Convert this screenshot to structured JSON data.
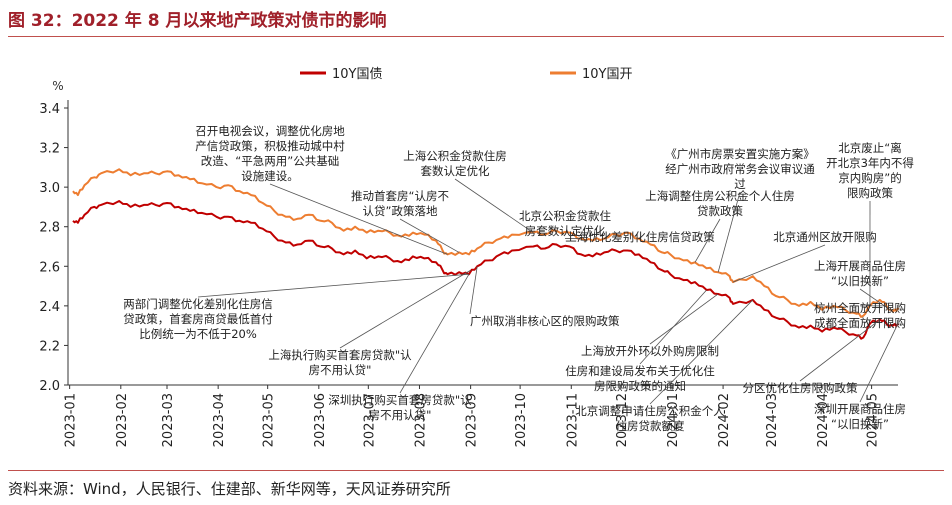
{
  "figure": {
    "title": "图 32：2022 年 8 月以来地产政策对债市的影响",
    "source": "资料来源：Wind，人民银行、住建部、新华网等，天风证券研究所"
  },
  "colors": {
    "title": "#a0202a",
    "rule": "#c0504d",
    "series_10y_gz": "#c00000",
    "series_10y_gk": "#ed7d31",
    "annotation_text": "#222222",
    "leader_line": "#555555"
  },
  "chart_data": {
    "type": "line",
    "y_unit_label": "%",
    "ylim": [
      2.0,
      3.4
    ],
    "yticks": [
      2.0,
      2.2,
      2.4,
      2.6,
      2.8,
      3.0,
      3.2,
      3.4
    ],
    "ytick_labels": [
      "2.0",
      "2.2",
      "2.4",
      "2.6",
      "2.8",
      "3.0",
      "3.2",
      "3.4"
    ],
    "x_range": [
      "2022-12-31",
      "2024-05-17"
    ],
    "xticks": [
      "2023-01-01",
      "2023-02-01",
      "2023-03-01",
      "2023-04-01",
      "2023-05-01",
      "2023-06-01",
      "2023-07-01",
      "2023-08-01",
      "2023-09-01",
      "2023-10-01",
      "2023-11-01",
      "2023-12-01",
      "2024-01-01",
      "2024-02-01",
      "2024-03-01",
      "2024-04-01",
      "2024-05-01"
    ],
    "xtick_labels": [
      "2023-01",
      "2023-02",
      "2023-03",
      "2023-04",
      "2023-05",
      "2023-06",
      "2023-07",
      "2023-08",
      "2023-09",
      "2023-10",
      "2023-11",
      "2023-12",
      "2024-01",
      "2024-02",
      "2024-03",
      "2024-04",
      "2024-05"
    ],
    "grid": false,
    "legend": "top-center",
    "series": [
      {
        "name": "10Y国债",
        "points": [
          [
            "2023-01-03",
            2.83
          ],
          [
            "2023-01-06",
            2.82
          ],
          [
            "2023-01-10",
            2.86
          ],
          [
            "2023-01-16",
            2.9
          ],
          [
            "2023-01-20",
            2.91
          ],
          [
            "2023-01-31",
            2.93
          ],
          [
            "2023-02-07",
            2.9
          ],
          [
            "2023-02-15",
            2.91
          ],
          [
            "2023-02-22",
            2.91
          ],
          [
            "2023-03-01",
            2.92
          ],
          [
            "2023-03-08",
            2.9
          ],
          [
            "2023-03-15",
            2.88
          ],
          [
            "2023-03-22",
            2.87
          ],
          [
            "2023-03-31",
            2.85
          ],
          [
            "2023-04-07",
            2.85
          ],
          [
            "2023-04-14",
            2.83
          ],
          [
            "2023-04-21",
            2.82
          ],
          [
            "2023-04-28",
            2.79
          ],
          [
            "2023-05-05",
            2.75
          ],
          [
            "2023-05-12",
            2.72
          ],
          [
            "2023-05-19",
            2.71
          ],
          [
            "2023-05-26",
            2.73
          ],
          [
            "2023-06-02",
            2.7
          ],
          [
            "2023-06-09",
            2.69
          ],
          [
            "2023-06-16",
            2.66
          ],
          [
            "2023-06-23",
            2.68
          ],
          [
            "2023-06-30",
            2.64
          ],
          [
            "2023-07-07",
            2.65
          ],
          [
            "2023-07-14",
            2.64
          ],
          [
            "2023-07-21",
            2.62
          ],
          [
            "2023-07-28",
            2.65
          ],
          [
            "2023-08-04",
            2.64
          ],
          [
            "2023-08-11",
            2.62
          ],
          [
            "2023-08-15",
            2.58
          ],
          [
            "2023-08-18",
            2.56
          ],
          [
            "2023-08-25",
            2.57
          ],
          [
            "2023-08-31",
            2.56
          ],
          [
            "2023-09-05",
            2.6
          ],
          [
            "2023-09-12",
            2.63
          ],
          [
            "2023-09-19",
            2.66
          ],
          [
            "2023-09-26",
            2.68
          ],
          [
            "2023-10-09",
            2.7
          ],
          [
            "2023-10-16",
            2.69
          ],
          [
            "2023-10-23",
            2.71
          ],
          [
            "2023-10-31",
            2.7
          ],
          [
            "2023-11-07",
            2.66
          ],
          [
            "2023-11-14",
            2.65
          ],
          [
            "2023-11-21",
            2.67
          ],
          [
            "2023-11-28",
            2.68
          ],
          [
            "2023-12-05",
            2.68
          ],
          [
            "2023-12-12",
            2.66
          ],
          [
            "2023-12-19",
            2.62
          ],
          [
            "2023-12-26",
            2.58
          ],
          [
            "2023-12-31",
            2.56
          ],
          [
            "2024-01-08",
            2.53
          ],
          [
            "2024-01-15",
            2.52
          ],
          [
            "2024-01-22",
            2.48
          ],
          [
            "2024-01-29",
            2.46
          ],
          [
            "2024-02-05",
            2.44
          ],
          [
            "2024-02-07",
            2.41
          ],
          [
            "2024-02-19",
            2.43
          ],
          [
            "2024-02-26",
            2.38
          ],
          [
            "2024-03-04",
            2.34
          ],
          [
            "2024-03-11",
            2.32
          ],
          [
            "2024-03-18",
            2.29
          ],
          [
            "2024-03-25",
            2.3
          ],
          [
            "2024-04-01",
            2.27
          ],
          [
            "2024-04-08",
            2.29
          ],
          [
            "2024-04-15",
            2.27
          ],
          [
            "2024-04-22",
            2.25
          ],
          [
            "2024-04-26",
            2.24
          ],
          [
            "2024-04-30",
            2.31
          ],
          [
            "2024-05-06",
            2.33
          ],
          [
            "2024-05-10",
            2.31
          ],
          [
            "2024-05-14",
            2.3
          ],
          [
            "2024-05-17",
            2.31
          ]
        ]
      },
      {
        "name": "10Y国开",
        "points": [
          [
            "2023-01-03",
            2.98
          ],
          [
            "2023-01-06",
            2.96
          ],
          [
            "2023-01-10",
            3.01
          ],
          [
            "2023-01-16",
            3.05
          ],
          [
            "2023-01-20",
            3.07
          ],
          [
            "2023-01-31",
            3.09
          ],
          [
            "2023-02-07",
            3.06
          ],
          [
            "2023-02-15",
            3.07
          ],
          [
            "2023-02-22",
            3.07
          ],
          [
            "2023-03-01",
            3.08
          ],
          [
            "2023-03-08",
            3.06
          ],
          [
            "2023-03-15",
            3.04
          ],
          [
            "2023-03-22",
            3.02
          ],
          [
            "2023-03-31",
            3.0
          ],
          [
            "2023-04-07",
            3.01
          ],
          [
            "2023-04-14",
            2.98
          ],
          [
            "2023-04-21",
            2.96
          ],
          [
            "2023-04-28",
            2.92
          ],
          [
            "2023-05-05",
            2.88
          ],
          [
            "2023-05-12",
            2.85
          ],
          [
            "2023-05-19",
            2.84
          ],
          [
            "2023-05-26",
            2.86
          ],
          [
            "2023-06-02",
            2.83
          ],
          [
            "2023-06-09",
            2.82
          ],
          [
            "2023-06-16",
            2.78
          ],
          [
            "2023-06-23",
            2.8
          ],
          [
            "2023-06-30",
            2.77
          ],
          [
            "2023-07-07",
            2.78
          ],
          [
            "2023-07-14",
            2.77
          ],
          [
            "2023-07-21",
            2.75
          ],
          [
            "2023-07-28",
            2.77
          ],
          [
            "2023-08-04",
            2.76
          ],
          [
            "2023-08-11",
            2.73
          ],
          [
            "2023-08-15",
            2.68
          ],
          [
            "2023-08-18",
            2.66
          ],
          [
            "2023-08-25",
            2.67
          ],
          [
            "2023-08-31",
            2.66
          ],
          [
            "2023-09-05",
            2.69
          ],
          [
            "2023-09-12",
            2.72
          ],
          [
            "2023-09-19",
            2.74
          ],
          [
            "2023-09-26",
            2.76
          ],
          [
            "2023-10-09",
            2.77
          ],
          [
            "2023-10-16",
            2.76
          ],
          [
            "2023-10-23",
            2.78
          ],
          [
            "2023-10-31",
            2.77
          ],
          [
            "2023-11-07",
            2.74
          ],
          [
            "2023-11-14",
            2.73
          ],
          [
            "2023-11-21",
            2.74
          ],
          [
            "2023-11-28",
            2.76
          ],
          [
            "2023-12-05",
            2.77
          ],
          [
            "2023-12-12",
            2.74
          ],
          [
            "2023-12-19",
            2.71
          ],
          [
            "2023-12-26",
            2.67
          ],
          [
            "2023-12-31",
            2.66
          ],
          [
            "2024-01-08",
            2.63
          ],
          [
            "2024-01-15",
            2.62
          ],
          [
            "2024-01-22",
            2.59
          ],
          [
            "2024-01-29",
            2.57
          ],
          [
            "2024-02-05",
            2.55
          ],
          [
            "2024-02-07",
            2.52
          ],
          [
            "2024-02-19",
            2.55
          ],
          [
            "2024-02-26",
            2.5
          ],
          [
            "2024-03-04",
            2.45
          ],
          [
            "2024-03-11",
            2.43
          ],
          [
            "2024-03-18",
            2.4
          ],
          [
            "2024-03-25",
            2.42
          ],
          [
            "2024-04-01",
            2.38
          ],
          [
            "2024-04-08",
            2.4
          ],
          [
            "2024-04-15",
            2.38
          ],
          [
            "2024-04-22",
            2.36
          ],
          [
            "2024-04-26",
            2.35
          ],
          [
            "2024-04-30",
            2.4
          ],
          [
            "2024-05-06",
            2.43
          ],
          [
            "2024-05-10",
            2.4
          ],
          [
            "2024-05-14",
            2.37
          ],
          [
            "2024-05-17",
            2.39
          ]
        ]
      }
    ],
    "annotations": [
      {
        "lines": [
          "召开电视会议，调整优化房地",
          "产信贷政策，积极推动城中村",
          "改造、“平急两用”公共基础",
          "设施建设。"
        ],
        "date": "2023-08-18",
        "value": 2.66,
        "anchor": "middle"
      },
      {
        "lines": [
          "推动首套房“认房不",
          "认贷”政策落地"
        ],
        "date": "2023-08-25",
        "value": 2.67,
        "anchor": "middle"
      },
      {
        "lines": [
          "上海公积金贷款住房",
          "套数认定优化"
        ],
        "date": "2023-10-09",
        "value": 2.77,
        "anchor": "middle"
      },
      {
        "lines": [
          "北京公积金贷款住",
          "房套数认定优化"
        ],
        "date": "2023-11-07",
        "value": 2.74,
        "anchor": "middle"
      },
      {
        "lines": [
          "上海优化差别化住房信贷政策"
        ],
        "date": "2023-12-12",
        "value": 2.74,
        "anchor": "middle"
      },
      {
        "lines": [
          "《广州市房票安置实施方案》",
          "经广州市政府常务会议审议通",
          "过"
        ],
        "date": "2024-01-29",
        "value": 2.57,
        "anchor": "middle"
      },
      {
        "lines": [
          "上海调整住房公积金个人住房",
          "贷款政策"
        ],
        "date": "2024-01-15",
        "value": 2.62,
        "anchor": "middle"
      },
      {
        "lines": [
          "北京通州区放开限购"
        ],
        "date": "2024-02-07",
        "value": 2.52,
        "anchor": "middle"
      },
      {
        "lines": [
          "北京废止“离",
          "开北京3年内不得",
          "京内购房”的",
          "限购政策"
        ],
        "date": "2024-04-30",
        "value": 2.4,
        "anchor": "middle"
      },
      {
        "lines": [
          "上海开展商品住房",
          "“以旧换新”"
        ],
        "date": "2024-05-14",
        "value": 2.37,
        "anchor": "middle"
      },
      {
        "lines": [
          "杭州全面放开限购",
          "成都全面放开限购"
        ],
        "date": "2024-05-10",
        "value": 2.4,
        "anchor": "middle"
      },
      {
        "lines": [
          "两部门调整优化差别化住房信",
          "贷政策，首套房商贷最低首付",
          "比例统一为不低于20%"
        ],
        "date": "2023-08-31",
        "value": 2.56,
        "anchor": "middle"
      },
      {
        "lines": [
          "上海执行购买首套房贷款\"认",
          "房不用认贷\""
        ],
        "date": "2023-09-01",
        "value": 2.58,
        "anchor": "middle"
      },
      {
        "lines": [
          "深圳执行购买首套房贷款\"认",
          "房不用认贷\""
        ],
        "date": "2023-08-31",
        "value": 2.56,
        "anchor": "middle"
      },
      {
        "lines": [
          "广州取消非核心区的限购政策"
        ],
        "date": "2023-09-05",
        "value": 2.6,
        "anchor": "start"
      },
      {
        "lines": [
          "上海放开外环以外购房限制"
        ],
        "date": "2024-01-29",
        "value": 2.46,
        "anchor": "middle"
      },
      {
        "lines": [
          "住房和建设局发布关于优化住",
          "房限购政策的通知"
        ],
        "date": "2024-01-22",
        "value": 2.48,
        "anchor": "middle"
      },
      {
        "lines": [
          "北京调整申请住房公积金个人",
          "住房贷款额度"
        ],
        "date": "2024-02-19",
        "value": 2.43,
        "anchor": "middle"
      },
      {
        "lines": [
          "分区优化住房限购政策"
        ],
        "date": "2024-05-06",
        "value": 2.33,
        "anchor": "middle"
      },
      {
        "lines": [
          "深圳开展商品住房",
          "“以旧换新”"
        ],
        "date": "2024-05-17",
        "value": 2.31,
        "anchor": "middle"
      }
    ]
  }
}
